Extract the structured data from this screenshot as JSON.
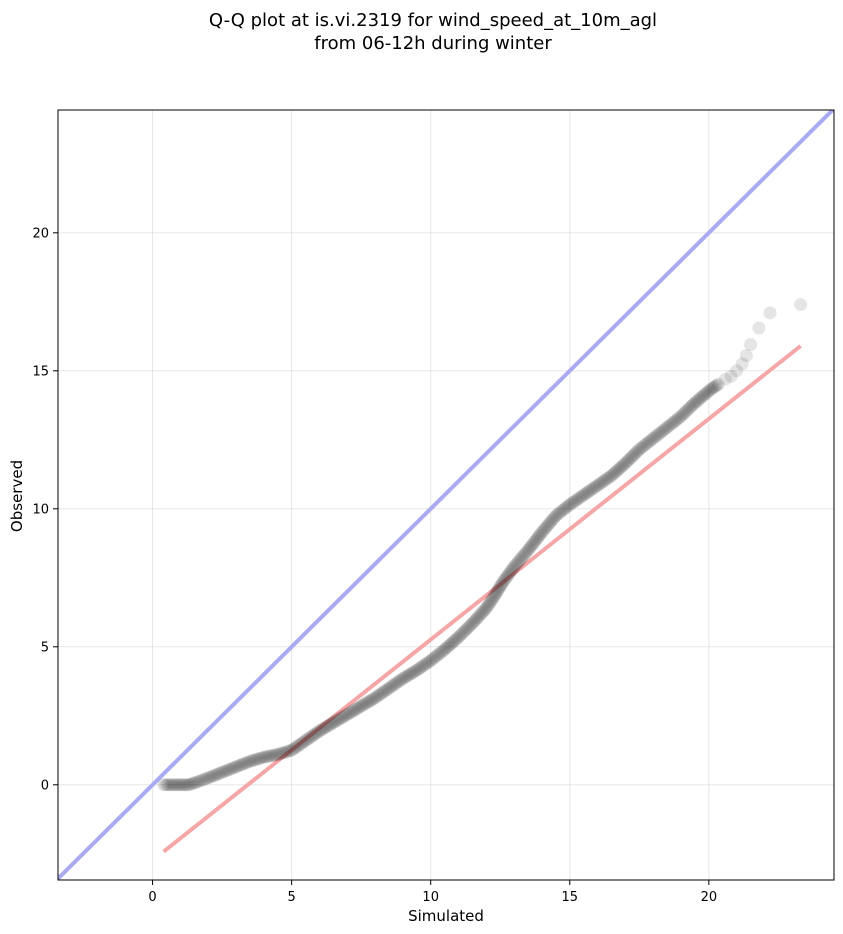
{
  "chart_data": {
    "type": "scatter",
    "title": "Q-Q plot at is.vi.2319 for wind_speed_at_10m_agl",
    "subtitle": "from 06-12h during winter",
    "xlabel": "Simulated",
    "ylabel": "Observed",
    "xlim": [
      -3.4,
      24.5
    ],
    "ylim": [
      -3.45,
      24.45
    ],
    "xticks": [
      0,
      5,
      10,
      15,
      20
    ],
    "yticks": [
      0,
      5,
      10,
      15,
      20
    ],
    "grid": true,
    "legend": "none",
    "colors": {
      "identity_line": "#aaaaf2",
      "fit_line": "#f5a6a6",
      "points": "#000000"
    },
    "identity_line": {
      "x": [
        -3.4,
        24.5
      ],
      "y": [
        -3.4,
        24.5
      ]
    },
    "fit_line": {
      "x": [
        0.4,
        23.3
      ],
      "y": [
        -2.42,
        15.9
      ]
    },
    "quantile_curve": {
      "x": [
        0.4,
        0.7,
        1.0,
        1.3,
        1.6,
        2.0,
        2.5,
        3.0,
        3.5,
        4.0,
        4.5,
        5.0,
        5.5,
        6.0,
        6.5,
        7.0,
        7.5,
        8.0,
        8.5,
        9.0,
        9.5,
        10.0,
        10.5,
        11.0,
        11.5,
        12.0,
        12.3,
        12.6,
        13.0,
        13.5,
        14.0,
        14.5,
        15.0,
        15.5,
        16.0,
        16.5,
        17.0,
        17.5,
        18.0,
        18.5,
        19.0,
        19.4,
        19.8,
        20.1,
        20.4
      ],
      "y": [
        0.0,
        0.0,
        0.0,
        0.0,
        0.1,
        0.25,
        0.45,
        0.65,
        0.85,
        1.0,
        1.1,
        1.25,
        1.6,
        1.95,
        2.25,
        2.55,
        2.85,
        3.15,
        3.5,
        3.85,
        4.15,
        4.5,
        4.9,
        5.35,
        5.85,
        6.4,
        6.85,
        7.35,
        7.9,
        8.5,
        9.15,
        9.75,
        10.15,
        10.5,
        10.85,
        11.2,
        11.65,
        12.15,
        12.55,
        12.95,
        13.35,
        13.75,
        14.1,
        14.35,
        14.55
      ]
    },
    "tail_points": {
      "x": [
        20.6,
        20.8,
        21.0,
        21.2,
        21.35,
        21.5,
        21.8,
        22.2,
        23.3
      ],
      "y": [
        14.7,
        14.8,
        15.0,
        15.25,
        15.55,
        15.95,
        16.55,
        17.1,
        17.4
      ]
    }
  }
}
